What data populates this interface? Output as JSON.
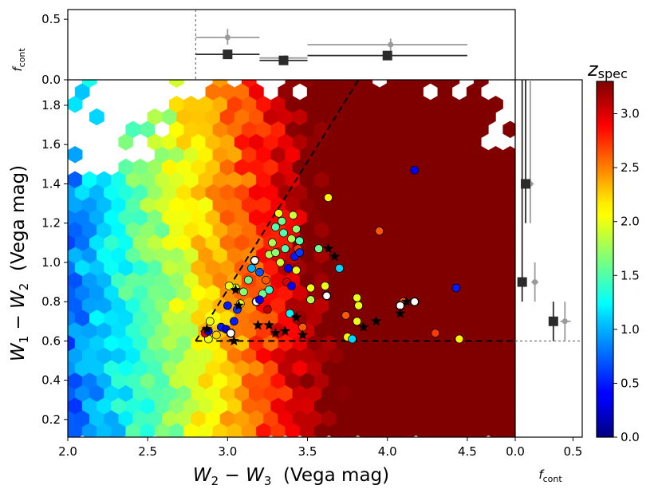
{
  "chart_data": {
    "type": "scatter",
    "main": {
      "xlabel_var": "W",
      "xlabel_sub1": "2",
      "xlabel_sub2": "3",
      "xlabel_text": "(Vega mag)",
      "ylabel_var": "W",
      "ylabel_sub1": "1",
      "ylabel_sub2": "2",
      "ylabel_text": "(Vega mag)",
      "xlim": [
        2.0,
        4.8
      ],
      "ylim": [
        0.11,
        1.93
      ],
      "xticks": [
        "2.0",
        "2.5",
        "3.0",
        "3.5",
        "4.0",
        "4.5"
      ],
      "xtick_values": [
        2.0,
        2.5,
        3.0,
        3.5,
        4.0,
        4.5
      ],
      "yticks": [
        "0.2",
        "0.4",
        "0.6",
        "0.8",
        "1.0",
        "1.2",
        "1.4",
        "1.6",
        "1.8"
      ],
      "ytick_values": [
        0.2,
        0.4,
        0.6,
        0.8,
        1.0,
        1.2,
        1.4,
        1.6,
        1.8
      ],
      "wedge": {
        "x": [
          2.8,
          3.82,
          4.8
        ],
        "y_top": 1.93,
        "y_floor": 0.6
      },
      "circles": [
        {
          "x": 2.88,
          "y": 0.61,
          "z": 2.0
        },
        {
          "x": 2.86,
          "y": 0.64,
          "z": 3.0
        },
        {
          "x": 2.88,
          "y": 0.65,
          "z": 0.4
        },
        {
          "x": 2.89,
          "y": 0.7,
          "z": 2.0
        },
        {
          "x": 2.93,
          "y": 0.63,
          "z": 2.2
        },
        {
          "x": 2.96,
          "y": 0.67,
          "z": 0.5
        },
        {
          "x": 2.99,
          "y": 0.66,
          "z": 0.3
        },
        {
          "x": 3.02,
          "y": 0.64,
          "z": -1
        },
        {
          "x": 3.04,
          "y": 0.7,
          "z": 0.5
        },
        {
          "x": 3.0,
          "y": 0.78,
          "z": 0.5
        },
        {
          "x": 3.06,
          "y": 0.76,
          "z": 0.6
        },
        {
          "x": 3.05,
          "y": 0.87,
          "z": 1.9
        },
        {
          "x": 3.01,
          "y": 0.88,
          "z": 2.0
        },
        {
          "x": 3.08,
          "y": 0.79,
          "z": 2.0
        },
        {
          "x": 3.1,
          "y": 0.85,
          "z": 1.7
        },
        {
          "x": 3.13,
          "y": 0.91,
          "z": 1.6
        },
        {
          "x": 3.15,
          "y": 0.97,
          "z": 1.0
        },
        {
          "x": 3.17,
          "y": 1.01,
          "z": -1
        },
        {
          "x": 3.2,
          "y": 0.95,
          "z": 0.7
        },
        {
          "x": 3.22,
          "y": 0.84,
          "z": 1.6
        },
        {
          "x": 3.18,
          "y": 0.8,
          "z": -1
        },
        {
          "x": 3.2,
          "y": 0.81,
          "z": 0.4
        },
        {
          "x": 3.26,
          "y": 0.86,
          "z": 1.4
        },
        {
          "x": 3.25,
          "y": 0.76,
          "z": 3.1
        },
        {
          "x": 3.24,
          "y": 0.91,
          "z": 2.6
        },
        {
          "x": 3.26,
          "y": 1.04,
          "z": 1.8
        },
        {
          "x": 3.28,
          "y": 1.1,
          "z": 1.8
        },
        {
          "x": 3.3,
          "y": 1.18,
          "z": 1.5
        },
        {
          "x": 3.32,
          "y": 1.25,
          "z": 2.0
        },
        {
          "x": 3.34,
          "y": 1.21,
          "z": 1.6
        },
        {
          "x": 3.35,
          "y": 1.15,
          "z": 1.5
        },
        {
          "x": 3.36,
          "y": 1.07,
          "z": 1.5
        },
        {
          "x": 3.3,
          "y": 1.05,
          "z": 1.7
        },
        {
          "x": 3.33,
          "y": 1.0,
          "z": 1.9
        },
        {
          "x": 3.37,
          "y": 0.9,
          "z": 3.0
        },
        {
          "x": 3.4,
          "y": 0.88,
          "z": 0.4
        },
        {
          "x": 3.38,
          "y": 0.97,
          "z": 0.4
        },
        {
          "x": 3.42,
          "y": 1.03,
          "z": 0.5
        },
        {
          "x": 3.4,
          "y": 1.12,
          "z": 1.8
        },
        {
          "x": 3.41,
          "y": 1.24,
          "z": 1.9
        },
        {
          "x": 3.43,
          "y": 1.17,
          "z": 1.7
        },
        {
          "x": 3.45,
          "y": 1.11,
          "z": 1.5
        },
        {
          "x": 3.44,
          "y": 1.07,
          "z": 2.7
        },
        {
          "x": 3.45,
          "y": 1.05,
          "z": 0.6
        },
        {
          "x": 3.43,
          "y": 0.96,
          "z": 2.0
        },
        {
          "x": 3.39,
          "y": 0.74,
          "z": 1.2
        },
        {
          "x": 3.47,
          "y": 0.67,
          "z": 2.6
        },
        {
          "x": 3.52,
          "y": 0.81,
          "z": 1.8
        },
        {
          "x": 3.52,
          "y": 0.87,
          "z": 2.0
        },
        {
          "x": 3.57,
          "y": 1.07,
          "z": 1.6
        },
        {
          "x": 3.61,
          "y": 0.88,
          "z": 2.0
        },
        {
          "x": 3.62,
          "y": 0.83,
          "z": -1
        },
        {
          "x": 3.63,
          "y": 1.33,
          "z": 2.1
        },
        {
          "x": 3.7,
          "y": 0.97,
          "z": 1.1
        },
        {
          "x": 3.74,
          "y": 0.73,
          "z": 2.6
        },
        {
          "x": 3.75,
          "y": 0.62,
          "z": 2.1
        },
        {
          "x": 3.78,
          "y": 0.61,
          "z": 1.1
        },
        {
          "x": 3.81,
          "y": 0.82,
          "z": 2.0
        },
        {
          "x": 3.82,
          "y": 0.78,
          "z": 2.0
        },
        {
          "x": 3.81,
          "y": 0.7,
          "z": 2.0
        },
        {
          "x": 3.95,
          "y": 1.16,
          "z": 2.6
        },
        {
          "x": 4.1,
          "y": 0.8,
          "z": 2.6
        },
        {
          "x": 4.08,
          "y": 0.78,
          "z": -1
        },
        {
          "x": 4.17,
          "y": 1.47,
          "z": 0.4
        },
        {
          "x": 4.17,
          "y": 0.8,
          "z": -1
        },
        {
          "x": 4.3,
          "y": 0.64,
          "z": 2.7
        },
        {
          "x": 4.43,
          "y": 0.87,
          "z": 0.5
        },
        {
          "x": 4.45,
          "y": 0.61,
          "z": 2.1
        }
      ],
      "stars": [
        {
          "x": 2.87,
          "y": 0.66
        },
        {
          "x": 3.04,
          "y": 0.6
        },
        {
          "x": 3.07,
          "y": 0.78
        },
        {
          "x": 3.05,
          "y": 0.86
        },
        {
          "x": 3.19,
          "y": 0.68
        },
        {
          "x": 3.26,
          "y": 0.68
        },
        {
          "x": 3.3,
          "y": 0.64
        },
        {
          "x": 3.36,
          "y": 0.65
        },
        {
          "x": 3.43,
          "y": 0.72
        },
        {
          "x": 3.47,
          "y": 0.63
        },
        {
          "x": 3.63,
          "y": 1.07
        },
        {
          "x": 3.67,
          "y": 1.03
        },
        {
          "x": 3.85,
          "y": 0.67
        },
        {
          "x": 3.93,
          "y": 0.7
        },
        {
          "x": 4.08,
          "y": 0.74
        },
        {
          "x": 4.12,
          "y": 0.8
        }
      ]
    },
    "top": {
      "ylabel_var": "f",
      "ylabel_sub": "cont",
      "ylim": [
        0.0,
        0.58
      ],
      "yticks": [
        "0.0",
        "0.5"
      ],
      "ytick_values": [
        0.0,
        0.5
      ],
      "cut_x": 2.8,
      "black": [
        {
          "x": 3.0,
          "y": 0.21,
          "x_lo": 2.8,
          "x_hi": 3.2,
          "y_lo": 0.185,
          "y_hi": 0.235
        },
        {
          "x": 3.35,
          "y": 0.16,
          "x_lo": 3.2,
          "x_hi": 3.5,
          "y_lo": 0.135,
          "y_hi": 0.185
        },
        {
          "x": 4.0,
          "y": 0.2,
          "x_lo": 3.5,
          "x_hi": 4.5,
          "y_lo": 0.175,
          "y_hi": 0.225
        }
      ],
      "gray": [
        {
          "x": 3.0,
          "y": 0.35,
          "x_lo": 2.8,
          "x_hi": 3.2,
          "y_lo": 0.29,
          "y_hi": 0.42
        },
        {
          "x": 3.36,
          "y": 0.18,
          "x_lo": 3.2,
          "x_hi": 3.5,
          "y_lo": 0.16,
          "y_hi": 0.2
        },
        {
          "x": 4.02,
          "y": 0.29,
          "x_lo": 3.5,
          "x_hi": 4.5,
          "y_lo": 0.24,
          "y_hi": 0.34
        }
      ]
    },
    "right": {
      "xlabel_var": "f",
      "xlabel_sub": "cont",
      "xlim": [
        0.0,
        0.58
      ],
      "xticks": [
        "0.0",
        "0.5"
      ],
      "xtick_values": [
        0.0,
        0.5
      ],
      "cut_y": 0.6,
      "black": [
        {
          "x": 0.09,
          "y": 1.4,
          "y_lo": 1.2,
          "y_hi": 1.93,
          "x_lo": 0.06,
          "x_hi": 0.12
        },
        {
          "x": 0.06,
          "y": 0.9,
          "y_lo": 0.8,
          "y_hi": 1.93,
          "x_lo": 0.03,
          "x_hi": 0.09
        },
        {
          "x": 0.33,
          "y": 0.7,
          "y_lo": 0.6,
          "y_hi": 0.8,
          "x_lo": 0.3,
          "x_hi": 0.37
        }
      ],
      "gray": [
        {
          "x": 0.13,
          "y": 1.4,
          "y_lo": 1.2,
          "y_hi": 1.93,
          "x_lo": 0.1,
          "x_hi": 0.16
        },
        {
          "x": 0.17,
          "y": 0.9,
          "y_lo": 0.8,
          "y_hi": 1.0,
          "x_lo": 0.14,
          "x_hi": 0.2
        },
        {
          "x": 0.43,
          "y": 0.7,
          "y_lo": 0.6,
          "y_hi": 0.8,
          "x_lo": 0.39,
          "x_hi": 0.48
        }
      ]
    },
    "colorbar": {
      "label_var": "z",
      "label_sub": "spec",
      "range": [
        0.0,
        3.3
      ],
      "ticks": [
        "0.0",
        "0.5",
        "1.0",
        "1.5",
        "2.0",
        "2.5",
        "3.0"
      ],
      "tick_values": [
        0.0,
        0.5,
        1.0,
        1.5,
        2.0,
        2.5,
        3.0
      ],
      "colormap": "jet"
    }
  }
}
